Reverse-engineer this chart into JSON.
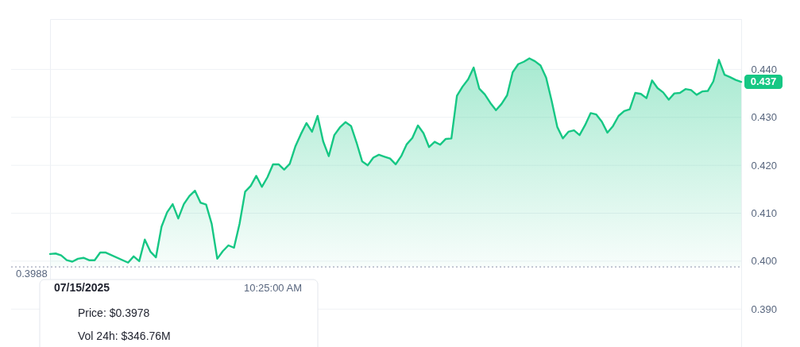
{
  "chart_data": {
    "type": "area",
    "categories": [
      null,
      null,
      null,
      null,
      null,
      null,
      null,
      null,
      null,
      null,
      null,
      null,
      null,
      null,
      null,
      null,
      null,
      null,
      null,
      null,
      null,
      null,
      null,
      null,
      null,
      null,
      null,
      null,
      null,
      null,
      null,
      null,
      null,
      null,
      null,
      null,
      null,
      null,
      null,
      null,
      null,
      null,
      null,
      null,
      null,
      null,
      null,
      null,
      null,
      null,
      null,
      null,
      null,
      null,
      null,
      null,
      null,
      null,
      null,
      null,
      null,
      null,
      null,
      null,
      null,
      null,
      null,
      null,
      null,
      null,
      null,
      null,
      null,
      null,
      null,
      null,
      null,
      null,
      null,
      null,
      null,
      null,
      null,
      null,
      null,
      null,
      null,
      null,
      null,
      null,
      null,
      null,
      null,
      null,
      null,
      null,
      null,
      null,
      null,
      null,
      null,
      null,
      null,
      null,
      null,
      null,
      null,
      null,
      null,
      null,
      null,
      null,
      null,
      null,
      null,
      null,
      null,
      null,
      null,
      null,
      null,
      null,
      null,
      null,
      null
    ],
    "values": [
      0.4015,
      0.4016,
      0.4012,
      0.4002,
      0.3999,
      0.4005,
      0.4007,
      0.4002,
      0.4002,
      0.4018,
      0.4018,
      null,
      null,
      null,
      0.3997,
      0.401,
      0.4,
      0.4045,
      0.402,
      0.4008,
      0.4072,
      0.4102,
      0.4119,
      0.4089,
      0.4119,
      0.4136,
      0.4147,
      0.4122,
      0.4118,
      0.4078,
      0.4005,
      0.4021,
      0.4033,
      0.4028,
      0.4078,
      0.4145,
      0.4157,
      0.4178,
      0.4155,
      0.4175,
      0.4202,
      0.4202,
      0.4191,
      0.4203,
      0.4239,
      0.4265,
      0.4288,
      0.427,
      0.4303,
      0.425,
      0.4219,
      0.4263,
      0.4279,
      0.429,
      0.4282,
      0.4247,
      0.4208,
      0.42,
      0.4216,
      0.4222,
      0.4218,
      0.4214,
      0.4202,
      0.4219,
      0.4244,
      0.4257,
      0.4283,
      0.4267,
      0.4238,
      0.4249,
      0.4243,
      0.4255,
      0.4256,
      0.4345,
      0.4364,
      0.4379,
      0.4404,
      0.436,
      0.4348,
      0.433,
      0.4315,
      0.4328,
      0.4346,
      0.4394,
      0.4411,
      0.4416,
      0.4423,
      0.4417,
      0.4408,
      0.4383,
      0.4334,
      0.428,
      0.4256,
      0.427,
      0.4273,
      0.4263,
      0.4284,
      0.4309,
      0.4306,
      0.4291,
      0.4268,
      0.4282,
      0.4303,
      0.4313,
      0.4317,
      0.4351,
      0.4349,
      0.434,
      0.4377,
      0.4361,
      0.4352,
      0.4337,
      0.435,
      0.4351,
      0.4359,
      0.4357,
      0.4347,
      0.4354,
      0.4355,
      0.4375,
      0.442,
      0.4389,
      0.4384,
      0.4378,
      0.4374
    ],
    "color": "#16c784",
    "ylim": [
      0.3821,
      0.4505
    ],
    "yticks": [
      {
        "value": 0.39,
        "label": "0.390"
      },
      {
        "value": 0.4,
        "label": "0.400"
      },
      {
        "value": 0.41,
        "label": "0.410"
      },
      {
        "value": 0.42,
        "label": "0.420"
      },
      {
        "value": 0.43,
        "label": "0.430"
      },
      {
        "value": 0.44,
        "label": "0.440"
      }
    ],
    "grid": "y",
    "tick_labels": "y",
    "ref_lines": [
      {
        "axis": "y",
        "value": 0.3988,
        "label": "0.3988",
        "color": "#a1a7bb",
        "line_style": "dotted"
      }
    ],
    "annotations": [
      "07/15/2025",
      "10:25:00 AM",
      "Price: $0.3978",
      "Vol 24h: $346.76M",
      "0.437"
    ]
  }
}
